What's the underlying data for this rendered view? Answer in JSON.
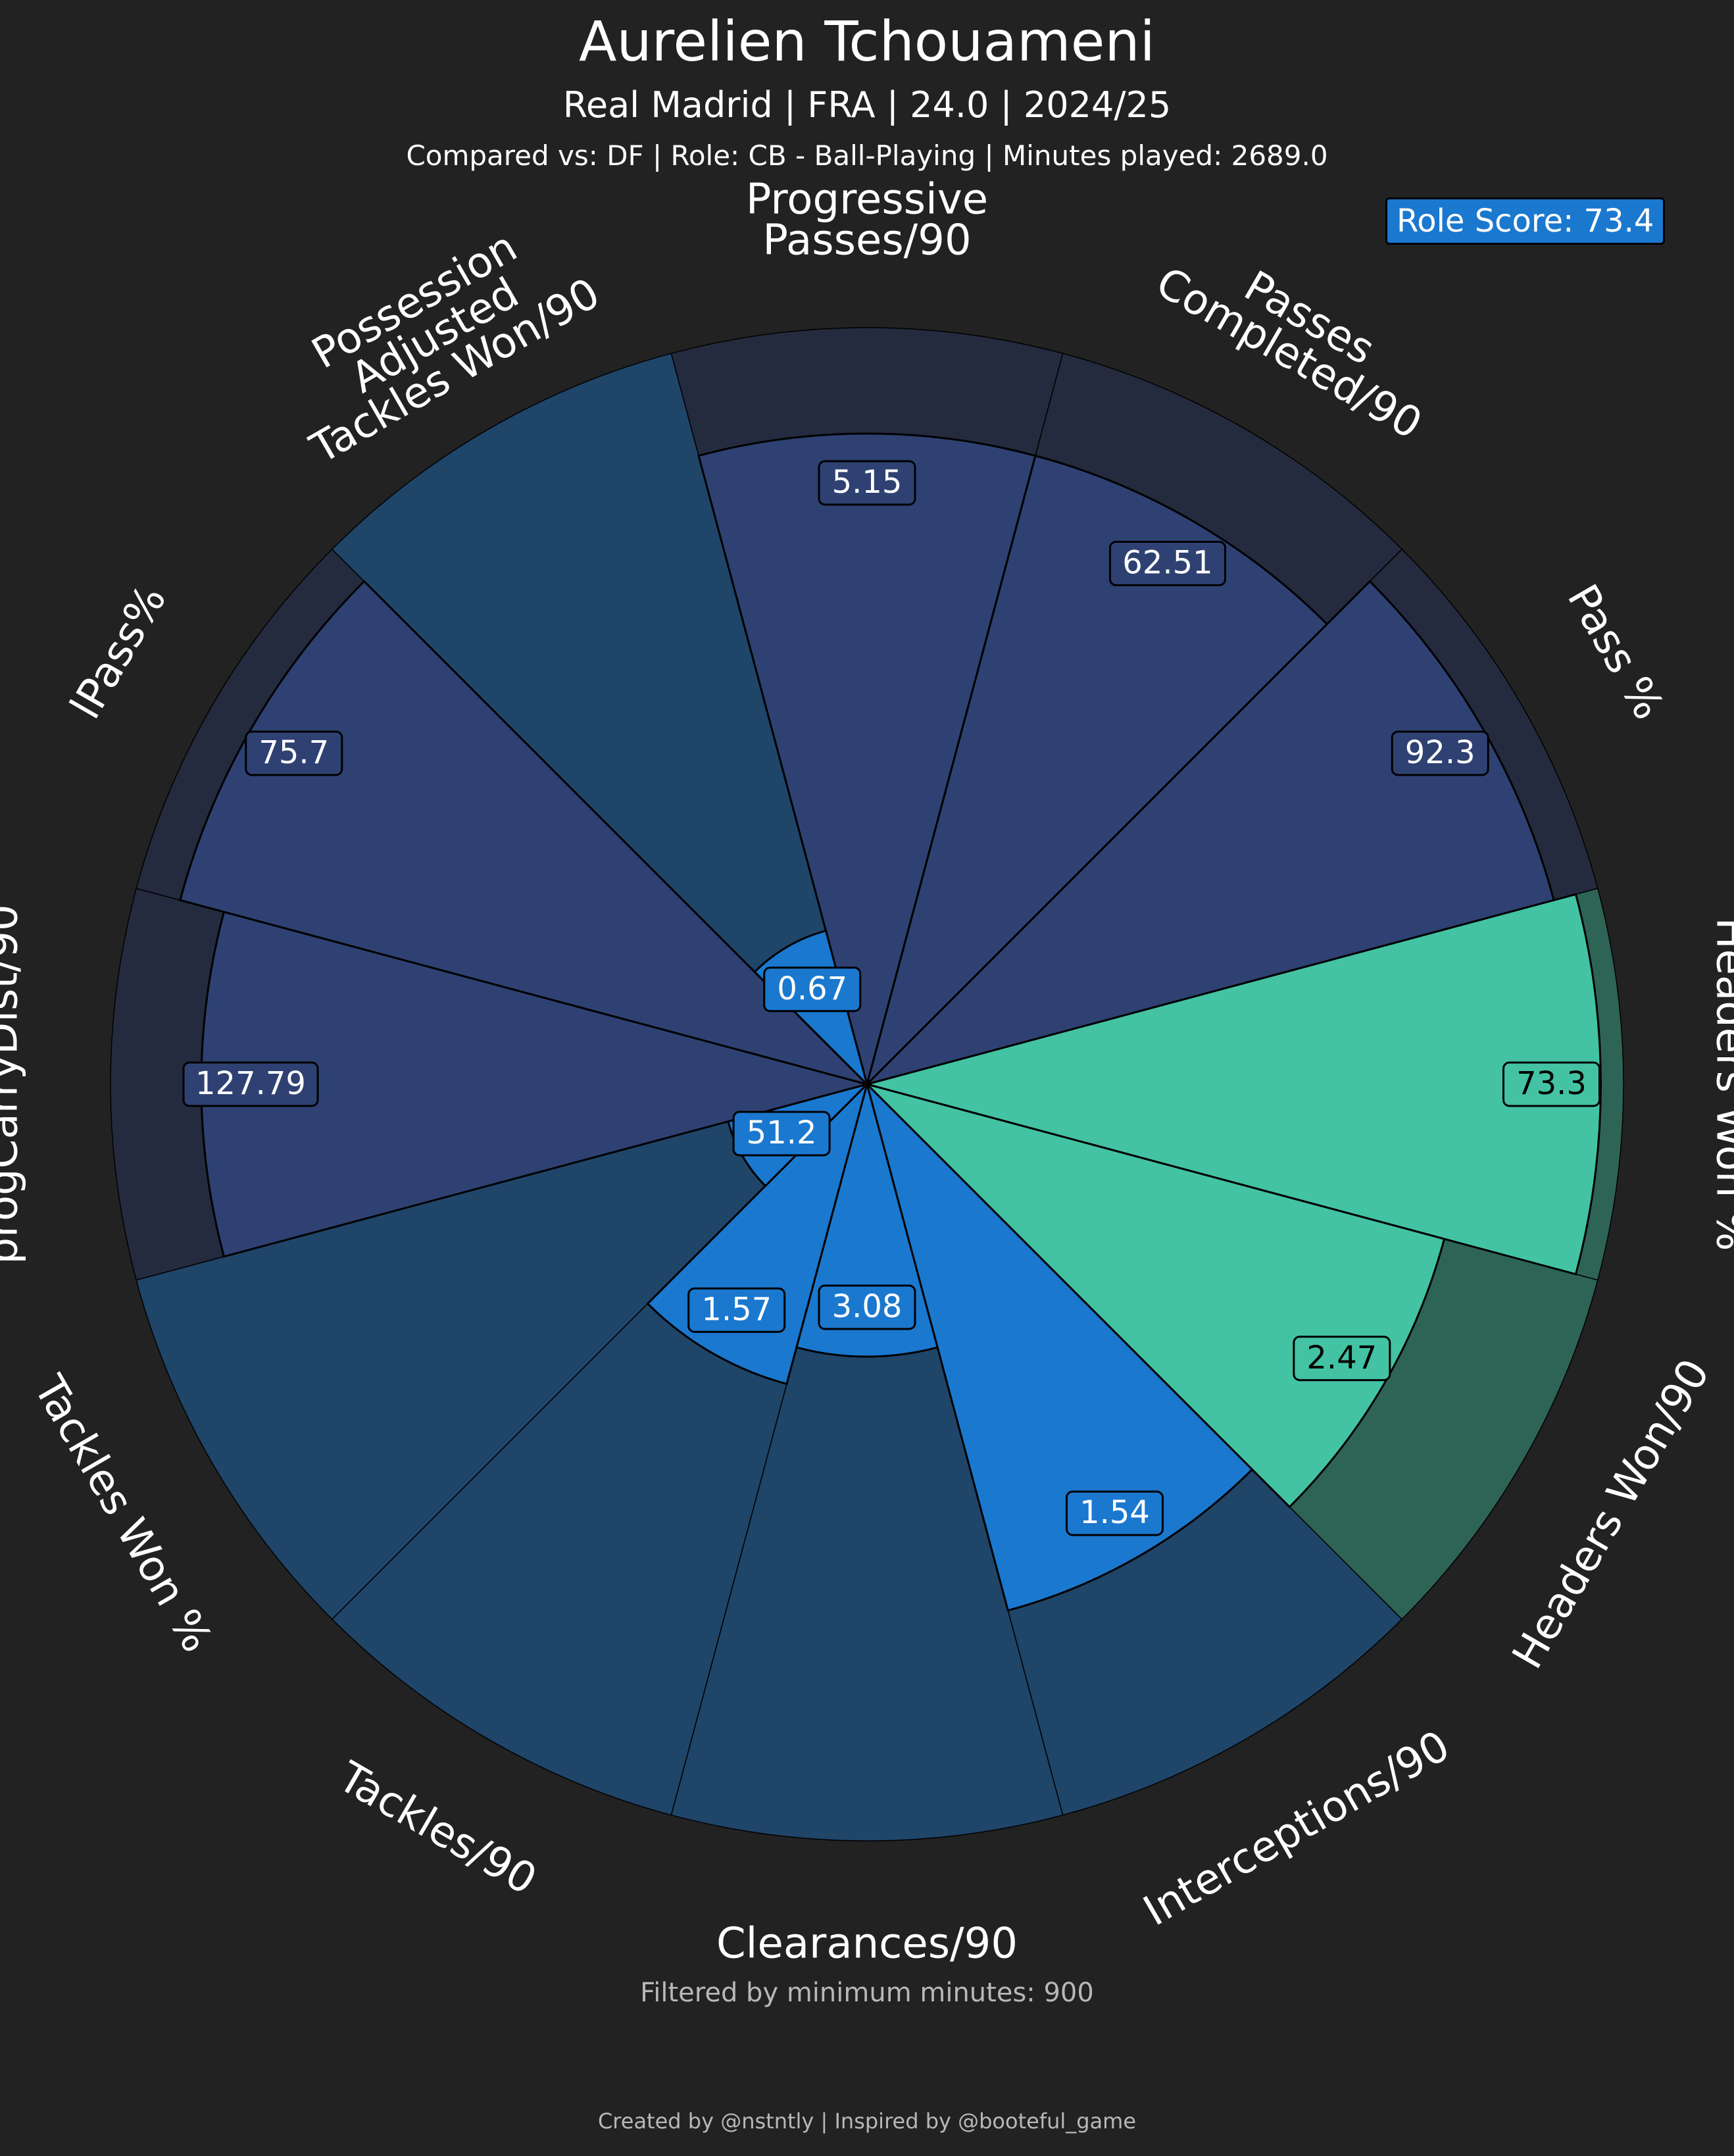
{
  "header": {
    "title": "Aurelien Tchouameni",
    "subtitle": "Real Madrid | FRA | 24.0 | 2024/25",
    "comparison": "Compared vs: DF | Role: CB - Ball-Playing | Minutes played: 2689.0",
    "role_score": "Role Score: 73.4"
  },
  "footer": {
    "filter_note": "Filtered by minimum minutes: 900",
    "credits": "Created by @nstntly | Inspired by @booteful_game"
  },
  "colors": {
    "background": "#222222",
    "passing": "#2e4172",
    "passing_bg": "#242b3f",
    "defending": "#1f4569",
    "defending_highlight": "#1a78cf",
    "aerial": "#43c3a3",
    "aerial_bg": "#2e6455",
    "border": "#000000"
  },
  "chart_data": {
    "type": "polar-area",
    "title": "Aurelien Tchouameni",
    "max_percentile": 100,
    "parameters": [
      {
        "label": "Progressive\nPasses/90",
        "value": "5.15",
        "percentile": 86,
        "group": "passing"
      },
      {
        "label": "Passes\nCompleted/90",
        "value": "62.51",
        "percentile": 86,
        "group": "passing"
      },
      {
        "label": "Pass %",
        "value": "92.3",
        "percentile": 94,
        "group": "passing"
      },
      {
        "label": "Headers Won %",
        "value": "73.3",
        "percentile": 97,
        "group": "aerial"
      },
      {
        "label": "Headers Won/90",
        "value": "2.47",
        "percentile": 79,
        "group": "aerial"
      },
      {
        "label": "Interceptions/90",
        "value": "1.54",
        "percentile": 72,
        "group": "defending"
      },
      {
        "label": "Clearances/90",
        "value": "3.08",
        "percentile": 36,
        "group": "defending"
      },
      {
        "label": "Tackles/90",
        "value": "1.57",
        "percentile": 41,
        "group": "defending"
      },
      {
        "label": "Tackles Won %",
        "value": "51.2",
        "percentile": 19,
        "group": "defending"
      },
      {
        "label": "progCarryDist/90",
        "value": "127.79",
        "percentile": 88,
        "group": "passing"
      },
      {
        "label": "lPass%",
        "value": "75.7",
        "percentile": 94,
        "group": "passing"
      },
      {
        "label": "Possession\nAdjusted\nTackles Won/90",
        "value": "0.67",
        "percentile": 21,
        "group": "defending"
      }
    ]
  }
}
